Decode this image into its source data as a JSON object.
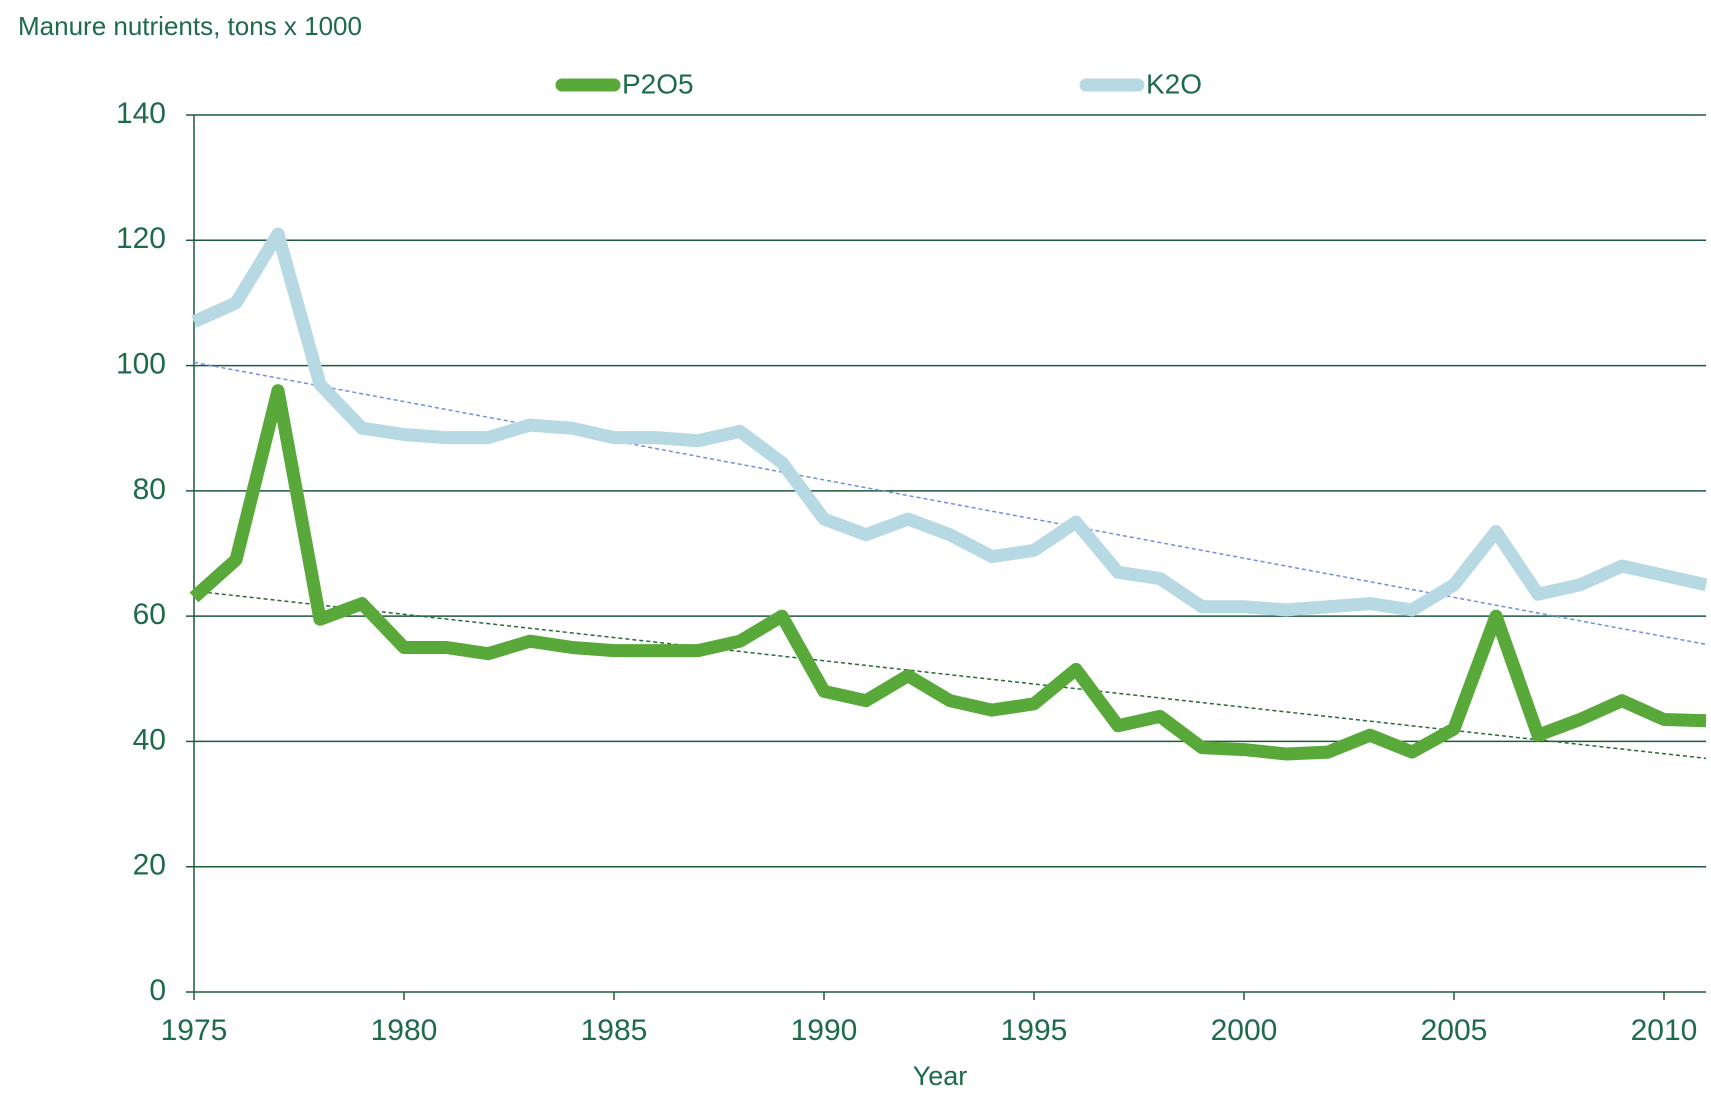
{
  "chart_data": {
    "type": "line",
    "y_label": "Manure nutrients, tons x 1000",
    "x_label": "Year",
    "x": [
      1975,
      1976,
      1977,
      1978,
      1979,
      1980,
      1981,
      1982,
      1983,
      1984,
      1985,
      1986,
      1987,
      1988,
      1989,
      1990,
      1991,
      1992,
      1993,
      1994,
      1995,
      1996,
      1997,
      1998,
      1999,
      2000,
      2001,
      2002,
      2003,
      2004,
      2005,
      2006,
      2007,
      2008,
      2009,
      2010,
      2011
    ],
    "series": [
      {
        "name": "P2O5",
        "color": "#58a83a",
        "values": [
          63,
          69,
          96,
          59.5,
          62,
          55,
          55,
          54,
          56,
          55,
          54.5,
          54.5,
          54.5,
          56,
          60,
          48,
          46.5,
          50.5,
          46.5,
          45,
          46,
          51.5,
          42.5,
          44,
          39,
          38.7,
          38,
          38.3,
          41,
          38.3,
          42,
          60,
          41,
          43.5,
          46.5,
          43.5,
          43.3
        ],
        "trendline": {
          "color": "#2a6a3a",
          "values": [
            64,
            37.3
          ]
        }
      },
      {
        "name": "K2O",
        "color": "#b7d9e4",
        "values": [
          107,
          110,
          121,
          97,
          90,
          89,
          88.5,
          88.5,
          90.5,
          90,
          88.5,
          88.5,
          88,
          89.5,
          84.5,
          75.5,
          73,
          75.5,
          73,
          69.5,
          70.5,
          75,
          67,
          66,
          61.5,
          61.5,
          61,
          61.5,
          62,
          61,
          65,
          73.5,
          63.5,
          65,
          68,
          66.5,
          65
        ],
        "trendline": {
          "color": "#6f8fe0",
          "values": [
            100.5,
            55.5
          ]
        }
      }
    ],
    "xlim": [
      1975,
      2011
    ],
    "xticks": [
      1975,
      1980,
      1985,
      1990,
      1995,
      2000,
      2005,
      2010
    ],
    "ylim": [
      0,
      140
    ],
    "yticks": [
      0,
      20,
      40,
      60,
      80,
      100,
      120,
      140
    ],
    "grid": true,
    "legend": "top"
  }
}
